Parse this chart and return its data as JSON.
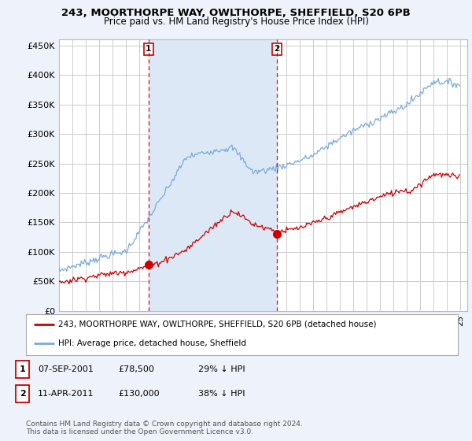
{
  "title1": "243, MOORTHORPE WAY, OWLTHORPE, SHEFFIELD, S20 6PB",
  "title2": "Price paid vs. HM Land Registry's House Price Index (HPI)",
  "ylabel_ticks": [
    "£0",
    "£50K",
    "£100K",
    "£150K",
    "£200K",
    "£250K",
    "£300K",
    "£350K",
    "£400K",
    "£450K"
  ],
  "ytick_values": [
    0,
    50000,
    100000,
    150000,
    200000,
    250000,
    300000,
    350000,
    400000,
    450000
  ],
  "ylim": [
    0,
    460000
  ],
  "xlim_start": 1995.0,
  "xlim_end": 2025.5,
  "hpi_color": "#7aaadd",
  "sale_color": "#cc0000",
  "shade_color": "#dce8f5",
  "marker1_x": 2001.69,
  "marker1_y": 78500,
  "marker2_x": 2011.27,
  "marker2_y": 130000,
  "vline1_x": 2001.69,
  "vline2_x": 2011.27,
  "legend_line1": "243, MOORTHORPE WAY, OWLTHORPE, SHEFFIELD, S20 6PB (detached house)",
  "legend_line2": "HPI: Average price, detached house, Sheffield",
  "annotation1_date": "07-SEP-2001",
  "annotation1_price": "£78,500",
  "annotation1_hpi": "29% ↓ HPI",
  "annotation2_date": "11-APR-2011",
  "annotation2_price": "£130,000",
  "annotation2_hpi": "38% ↓ HPI",
  "footer": "Contains HM Land Registry data © Crown copyright and database right 2024.\nThis data is licensed under the Open Government Licence v3.0.",
  "background_color": "#eef2fa",
  "plot_bg_color": "#ffffff",
  "grid_color": "#cccccc"
}
